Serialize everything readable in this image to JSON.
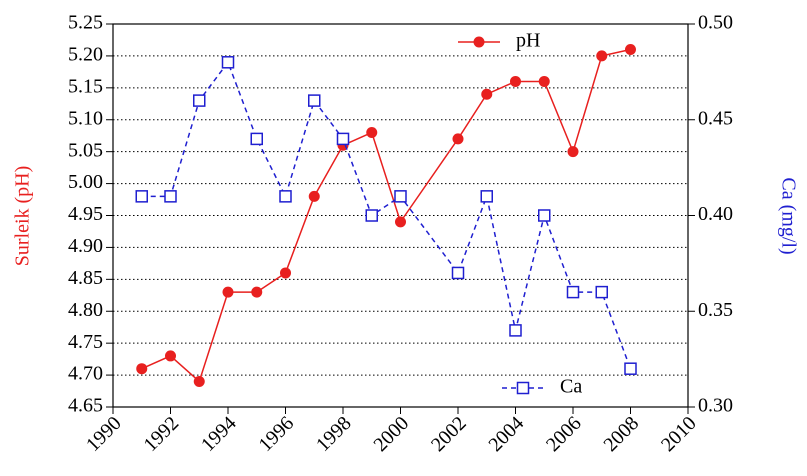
{
  "chart_data": {
    "type": "line",
    "ylabel": "Surleik (pH)",
    "y2label": "Ca (mg/l)",
    "x": [
      1991,
      1992,
      1993,
      1994,
      1995,
      1996,
      1997,
      1998,
      1999,
      2000,
      2002,
      2003,
      2004,
      2005,
      2006,
      2007,
      2008
    ],
    "series": [
      {
        "name": "pH",
        "color": "#e8201f",
        "values": [
          4.71,
          4.73,
          4.69,
          4.83,
          4.83,
          4.86,
          4.98,
          5.06,
          5.08,
          4.94,
          5.07,
          5.14,
          5.16,
          5.16,
          5.05,
          5.2,
          5.21
        ]
      },
      {
        "name": "Ca",
        "color": "#1f1fd0",
        "axis": "y2",
        "values": [
          0.41,
          0.41,
          0.46,
          0.48,
          0.44,
          0.41,
          0.46,
          0.44,
          0.4,
          0.41,
          0.37,
          0.41,
          0.34,
          0.4,
          0.36,
          0.36,
          0.32
        ]
      }
    ],
    "xlim": [
      1990,
      2010
    ],
    "xticks": [
      1990,
      1992,
      1994,
      1996,
      1998,
      2000,
      2002,
      2004,
      2006,
      2008,
      2010
    ],
    "ylim": [
      4.65,
      5.25
    ],
    "yticks": [
      4.65,
      {
        "value": 4.7,
        "label": "4.70"
      },
      4.75,
      {
        "value": 4.8,
        "label": "4.80"
      },
      4.85,
      {
        "value": 4.9,
        "label": "4.90"
      },
      4.95,
      {
        "value": 5.0,
        "label": "5.00"
      },
      5.05,
      {
        "value": 5.1,
        "label": "5.10"
      },
      5.15,
      {
        "value": 5.2,
        "label": "5.20"
      },
      5.25
    ],
    "y2lim": [
      0.3,
      0.5
    ],
    "y2ticks": [
      {
        "value": 0.3,
        "label": "0.30"
      },
      0.35,
      {
        "value": 0.4,
        "label": "0.40"
      },
      0.45,
      {
        "value": 0.5,
        "label": "0.50"
      }
    ],
    "grid": true
  }
}
